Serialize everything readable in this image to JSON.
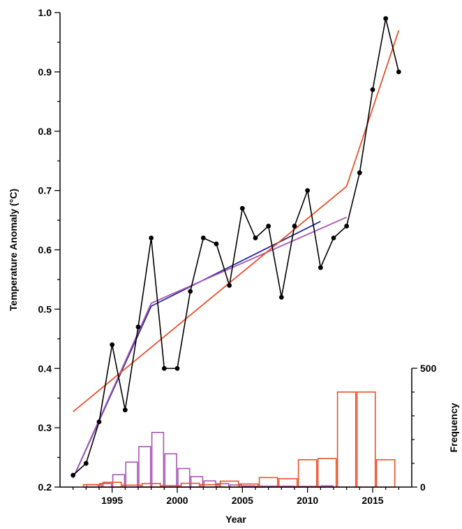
{
  "chart_data": {
    "type": "line",
    "title": "",
    "xlabel": "Year",
    "ylabel": "Temperature Anomaly (°C)",
    "y2label": "Frequency",
    "xlim": [
      1991,
      2018
    ],
    "ylim": [
      0.2,
      1.0
    ],
    "y2lim": [
      0,
      500
    ],
    "x_ticks": [
      1995,
      2000,
      2005,
      2010,
      2015
    ],
    "y_ticks": [
      "0.2",
      "0.3",
      "0.4",
      "0.5",
      "0.6",
      "0.7",
      "0.8",
      "0.9",
      "1.0"
    ],
    "y2_ticks": [
      0,
      500
    ],
    "grid": false,
    "observed": {
      "color": "#000000",
      "x": [
        1992,
        1993,
        1994,
        1995,
        1996,
        1997,
        1998,
        1999,
        2000,
        2001,
        2002,
        2003,
        2004,
        2005,
        2006,
        2007,
        2008,
        2009,
        2010,
        2011,
        2012,
        2013,
        2014,
        2015,
        2016,
        2017
      ],
      "y": [
        0.22,
        0.24,
        0.31,
        0.44,
        0.33,
        0.47,
        0.62,
        0.4,
        0.4,
        0.53,
        0.62,
        0.61,
        0.54,
        0.67,
        0.62,
        0.64,
        0.52,
        0.64,
        0.7,
        0.57,
        0.62,
        0.64,
        0.73,
        0.87,
        0.99,
        0.9
      ]
    },
    "trend_lines": [
      {
        "color": "#2b2d8f",
        "x": [
          1992,
          1998,
          2011
        ],
        "y": [
          0.215,
          0.505,
          0.648
        ]
      },
      {
        "color": "#a855b5",
        "x": [
          1992,
          1998,
          2013
        ],
        "y": [
          0.215,
          0.51,
          0.655
        ]
      },
      {
        "color": "#e8502a",
        "x": [
          1992,
          2013,
          2017
        ],
        "y": [
          0.327,
          0.707,
          0.97
        ]
      }
    ],
    "histograms": [
      {
        "color": "#a855b5",
        "bin_width": 0.9,
        "centers": [
          1993.5,
          1994.5,
          1995.5,
          1996.5,
          1997.5,
          1998.5,
          1999.5,
          2000.5,
          2001.5,
          2002.5,
          2003.5,
          2004.5,
          2005.5,
          2006.5,
          2007.5,
          2008.5,
          2009.5,
          2010.5,
          2011.5
        ],
        "values": [
          10,
          15,
          52,
          105,
          170,
          230,
          140,
          78,
          44,
          26,
          14,
          9,
          5,
          4,
          4,
          4,
          3,
          3,
          5
        ]
      },
      {
        "color": "#e8502a",
        "bin_width": 1.4,
        "centers": [
          1993.5,
          1995.0,
          1996.5,
          1998.0,
          1999.5,
          2001.0,
          2002.5,
          2004.0,
          2005.5,
          2007.0,
          2008.5,
          2010.0,
          2011.5,
          2013.0,
          2014.5,
          2016.0
        ],
        "values": [
          10,
          20,
          8,
          15,
          6,
          16,
          10,
          25,
          13,
          40,
          35,
          115,
          120,
          400,
          400,
          115
        ]
      }
    ]
  }
}
